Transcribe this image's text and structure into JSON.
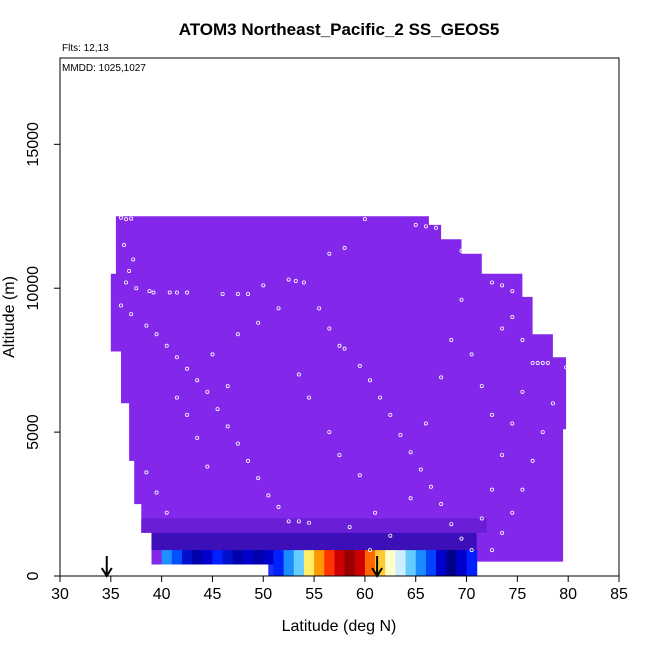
{
  "chart_data": {
    "type": "heatmap",
    "title": "ATOM3 Northeast_Pacific_2 SS_GEOS5",
    "annotations": {
      "flights": "Flts: 12,13",
      "dates": "MMDD: 1025,1027"
    },
    "xlabel": "Latitude (deg N)",
    "ylabel": "Altitude (m)",
    "xlim": [
      30,
      85
    ],
    "ylim": [
      0,
      18000
    ],
    "x_ticks": [
      30,
      35,
      40,
      45,
      50,
      55,
      60,
      65,
      70,
      75,
      80,
      85
    ],
    "x_tick_labels": [
      "30",
      "35",
      "40",
      "45",
      "50",
      "55",
      "60",
      "65",
      "70",
      "75",
      "80",
      "85"
    ],
    "y_ticks": [
      0,
      5000,
      10000,
      15000
    ],
    "y_tick_labels": [
      "0",
      "5000",
      "10000",
      "15000"
    ],
    "background_color": "#8328ea",
    "arrows_at_latitude": [
      34.6,
      61.2
    ],
    "top_boundary": [
      [
        35.5,
        12500
      ],
      [
        66.3,
        12500
      ],
      [
        66.3,
        12200
      ],
      [
        67.5,
        12200
      ],
      [
        67.5,
        11700
      ],
      [
        69.5,
        11700
      ],
      [
        69.5,
        11200
      ],
      [
        71.5,
        11200
      ],
      [
        71.5,
        10500
      ],
      [
        75.5,
        10500
      ],
      [
        75.5,
        9700
      ],
      [
        76.5,
        9700
      ],
      [
        76.5,
        8400
      ],
      [
        78.5,
        8400
      ],
      [
        78.5,
        7600
      ],
      [
        79.8,
        7600
      ],
      [
        79.8,
        5100
      ]
    ],
    "left_boundary": [
      [
        35.5,
        12500
      ],
      [
        35.5,
        10500
      ],
      [
        35.0,
        10500
      ],
      [
        35.0,
        7800
      ],
      [
        36.0,
        7800
      ],
      [
        36.0,
        6000
      ],
      [
        36.8,
        6000
      ],
      [
        36.8,
        4000
      ],
      [
        37.3,
        4000
      ],
      [
        37.3,
        2500
      ],
      [
        38.0,
        2500
      ],
      [
        38.0,
        1500
      ],
      [
        39.0,
        1500
      ],
      [
        39.0,
        400
      ]
    ],
    "bottom_boundary": [
      [
        39.0,
        400
      ],
      [
        40.5,
        400
      ],
      [
        40.5,
        900
      ],
      [
        50.5,
        900
      ],
      [
        50.5,
        0
      ],
      [
        70.5,
        0
      ],
      [
        70.5,
        500
      ],
      [
        79.5,
        500
      ],
      [
        79.5,
        5100
      ],
      [
        79.8,
        5100
      ]
    ],
    "color_bands": [
      {
        "lat_range": [
          38.0,
          72.0
        ],
        "alt_range": [
          1500,
          2000
        ],
        "color": "#6a1ed6"
      },
      {
        "lat_range": [
          39.0,
          71.0
        ],
        "alt_range": [
          900,
          1500
        ],
        "color": "#3d0fb8"
      },
      {
        "lat_range": [
          40.0,
          70.0
        ],
        "alt_range": [
          500,
          900
        ],
        "color": "#0a0aa8"
      },
      {
        "lat_range": [
          50.5,
          70.5
        ],
        "alt_range": [
          0,
          500
        ],
        "color": "#1a30ff"
      }
    ],
    "hotspot_columns": [
      {
        "lat": 51.0,
        "color": "#0020ff"
      },
      {
        "lat": 52.0,
        "color": "#1a8cff"
      },
      {
        "lat": 53.0,
        "color": "#66ccff"
      },
      {
        "lat": 54.0,
        "color": "#ffee66"
      },
      {
        "lat": 55.0,
        "color": "#ff9900"
      },
      {
        "lat": 56.0,
        "color": "#ff3300"
      },
      {
        "lat": 57.0,
        "color": "#cc0000"
      },
      {
        "lat": 58.0,
        "color": "#990000"
      },
      {
        "lat": 59.0,
        "color": "#cc0000"
      },
      {
        "lat": 60.0,
        "color": "#ff6600"
      },
      {
        "lat": 61.0,
        "color": "#ffcc33"
      },
      {
        "lat": 62.0,
        "color": "#ffffcc"
      },
      {
        "lat": 63.0,
        "color": "#cceeff"
      },
      {
        "lat": 64.0,
        "color": "#66ccff"
      },
      {
        "lat": 65.0,
        "color": "#1a8cff"
      },
      {
        "lat": 66.0,
        "color": "#0044ff"
      },
      {
        "lat": 67.0,
        "color": "#0000cc"
      },
      {
        "lat": 68.0,
        "color": "#00008b"
      },
      {
        "lat": 69.0,
        "color": "#0000cc"
      },
      {
        "lat": 70.0,
        "color": "#0020ff"
      }
    ],
    "low_band_columns": [
      {
        "lat": 40.0,
        "color": "#1e90ff"
      },
      {
        "lat": 41.0,
        "color": "#0050ff"
      },
      {
        "lat": 42.0,
        "color": "#0010cc"
      },
      {
        "lat": 43.0,
        "color": "#0000aa"
      },
      {
        "lat": 44.0,
        "color": "#0000cc"
      },
      {
        "lat": 45.0,
        "color": "#0020ff"
      },
      {
        "lat": 46.0,
        "color": "#0010cc"
      },
      {
        "lat": 47.0,
        "color": "#0000aa"
      },
      {
        "lat": 48.0,
        "color": "#0000cc"
      },
      {
        "lat": 49.0,
        "color": "#0000aa"
      },
      {
        "lat": 50.0,
        "color": "#0000cc"
      }
    ],
    "flight_track_points": [
      [
        36.0,
        12450
      ],
      [
        36.5,
        12400
      ],
      [
        37.0,
        12420
      ],
      [
        36.3,
        11500
      ],
      [
        37.2,
        11000
      ],
      [
        36.8,
        10600
      ],
      [
        36.5,
        10200
      ],
      [
        37.5,
        10000
      ],
      [
        38.8,
        9900
      ],
      [
        39.2,
        9850
      ],
      [
        40.8,
        9850
      ],
      [
        41.5,
        9850
      ],
      [
        42.5,
        9850
      ],
      [
        46.0,
        9800
      ],
      [
        47.5,
        9800
      ],
      [
        48.5,
        9800
      ],
      [
        50.0,
        10100
      ],
      [
        52.5,
        10300
      ],
      [
        53.2,
        10250
      ],
      [
        54.0,
        10200
      ],
      [
        56.5,
        11200
      ],
      [
        58.0,
        11400
      ],
      [
        60.0,
        12400
      ],
      [
        65.0,
        12200
      ],
      [
        66.0,
        12150
      ],
      [
        67.0,
        12100
      ],
      [
        68.5,
        11800
      ],
      [
        69.5,
        11300
      ],
      [
        72.5,
        10200
      ],
      [
        73.5,
        10100
      ],
      [
        74.5,
        9900
      ],
      [
        36.0,
        9400
      ],
      [
        37.0,
        9100
      ],
      [
        38.5,
        8700
      ],
      [
        39.5,
        8400
      ],
      [
        40.5,
        8000
      ],
      [
        41.5,
        7600
      ],
      [
        42.5,
        7200
      ],
      [
        43.5,
        6800
      ],
      [
        44.5,
        6400
      ],
      [
        45.5,
        5800
      ],
      [
        46.5,
        5200
      ],
      [
        47.5,
        4600
      ],
      [
        48.5,
        4000
      ],
      [
        49.5,
        3400
      ],
      [
        50.5,
        2800
      ],
      [
        51.5,
        2400
      ],
      [
        52.5,
        1900
      ],
      [
        53.5,
        1900
      ],
      [
        54.5,
        1850
      ],
      [
        55.5,
        9300
      ],
      [
        56.5,
        8600
      ],
      [
        57.5,
        8000
      ],
      [
        58.0,
        7900
      ],
      [
        59.5,
        7300
      ],
      [
        60.5,
        6800
      ],
      [
        61.5,
        6200
      ],
      [
        62.5,
        5600
      ],
      [
        63.5,
        4900
      ],
      [
        64.5,
        4300
      ],
      [
        65.5,
        3700
      ],
      [
        66.5,
        3100
      ],
      [
        67.5,
        2500
      ],
      [
        68.5,
        1800
      ],
      [
        69.5,
        1300
      ],
      [
        70.5,
        900
      ],
      [
        71.5,
        2000
      ],
      [
        72.5,
        3000
      ],
      [
        73.5,
        4200
      ],
      [
        74.5,
        5300
      ],
      [
        75.5,
        6400
      ],
      [
        76.5,
        7400
      ],
      [
        77.0,
        7400
      ],
      [
        77.5,
        7400
      ],
      [
        78.0,
        7400
      ],
      [
        79.8,
        7250
      ],
      [
        78.5,
        6000
      ],
      [
        77.5,
        5000
      ],
      [
        76.5,
        4000
      ],
      [
        75.5,
        3000
      ],
      [
        74.5,
        2200
      ],
      [
        73.5,
        1500
      ],
      [
        72.5,
        900
      ],
      [
        60.5,
        900
      ],
      [
        58.5,
        1700
      ],
      [
        44.5,
        3800
      ],
      [
        43.5,
        4800
      ],
      [
        42.5,
        5600
      ],
      [
        41.5,
        6200
      ],
      [
        40.5,
        2200
      ],
      [
        39.5,
        2900
      ],
      [
        38.5,
        3600
      ],
      [
        45.0,
        7700
      ],
      [
        46.5,
        6600
      ],
      [
        47.5,
        8400
      ],
      [
        49.5,
        8800
      ],
      [
        51.5,
        9300
      ],
      [
        53.5,
        7000
      ],
      [
        54.5,
        6200
      ],
      [
        56.5,
        5000
      ],
      [
        57.5,
        4200
      ],
      [
        59.5,
        3500
      ],
      [
        61.0,
        2200
      ],
      [
        62.5,
        1400
      ],
      [
        64.5,
        2700
      ],
      [
        66.0,
        5300
      ],
      [
        67.5,
        6900
      ],
      [
        68.5,
        8200
      ],
      [
        69.5,
        9600
      ],
      [
        70.5,
        7700
      ],
      [
        71.5,
        6600
      ],
      [
        72.5,
        5600
      ],
      [
        73.5,
        8600
      ],
      [
        74.5,
        9000
      ],
      [
        75.5,
        8200
      ]
    ]
  }
}
